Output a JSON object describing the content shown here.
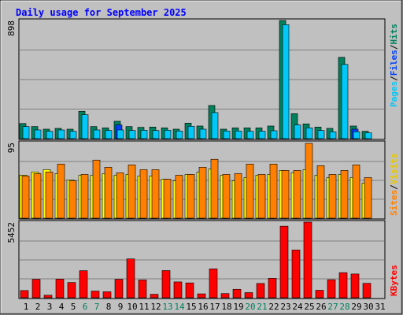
{
  "title": "Daily usage for September 2025",
  "colors": {
    "background": "#c0c0c0",
    "border": "#000000",
    "title": "#0000ff",
    "hits": "#00805c",
    "files": "#0040ff",
    "pages": "#00c8f8",
    "visits": "#ffff00",
    "sites": "#ff8000",
    "kbytes": "#ff0000",
    "weekend_day": "#00805c",
    "weekday": "#000000"
  },
  "chart_data": [
    {
      "type": "bar",
      "panel": "hits-files-pages",
      "y_scale_label": "898",
      "ylim": [
        0,
        898
      ],
      "legend": [
        "Pages",
        "/",
        "Files",
        "/",
        "Hits"
      ],
      "categories": [
        "1",
        "2",
        "3",
        "4",
        "5",
        "6",
        "7",
        "8",
        "9",
        "10",
        "11",
        "12",
        "13",
        "14",
        "15",
        "16",
        "17",
        "18",
        "19",
        "20",
        "21",
        "22",
        "23",
        "24",
        "25",
        "26",
        "27",
        "28",
        "29",
        "30",
        "31"
      ],
      "series": [
        {
          "name": "Hits",
          "values": [
            115,
            92,
            72,
            78,
            72,
            208,
            92,
            82,
            132,
            92,
            86,
            88,
            82,
            72,
            118,
            96,
            252,
            72,
            82,
            82,
            82,
            96,
            898,
            190,
            112,
            88,
            78,
            618,
            96,
            56,
            0
          ]
        },
        {
          "name": "Files",
          "values": [
            0,
            0,
            0,
            0,
            0,
            0,
            0,
            0,
            104,
            0,
            0,
            0,
            0,
            0,
            0,
            0,
            0,
            0,
            0,
            0,
            0,
            0,
            0,
            0,
            0,
            0,
            0,
            0,
            72,
            0,
            0
          ]
        },
        {
          "name": "Pages",
          "values": [
            92,
            66,
            56,
            66,
            56,
            182,
            66,
            62,
            66,
            62,
            64,
            62,
            64,
            58,
            94,
            72,
            198,
            58,
            58,
            56,
            56,
            60,
            866,
            104,
            82,
            62,
            52,
            564,
            52,
            44,
            0
          ]
        }
      ]
    },
    {
      "type": "bar",
      "panel": "visits-sites",
      "y_scale_label": "95",
      "ylim": [
        0,
        95
      ],
      "legend": [
        "Sites",
        "/",
        "Visits"
      ],
      "categories": [
        "1",
        "2",
        "3",
        "4",
        "5",
        "6",
        "7",
        "8",
        "9",
        "10",
        "11",
        "12",
        "13",
        "14",
        "15",
        "16",
        "17",
        "18",
        "19",
        "20",
        "21",
        "22",
        "23",
        "24",
        "25",
        "26",
        "27",
        "28",
        "29",
        "30",
        "31"
      ],
      "series": [
        {
          "name": "Visits",
          "values": [
            54,
            58,
            61,
            56,
            48,
            54,
            54,
            56,
            54,
            55,
            53,
            53,
            49,
            47,
            55,
            58,
            62,
            54,
            47,
            51,
            54,
            55,
            60,
            57,
            61,
            54,
            51,
            55,
            51,
            44,
            0
          ]
        },
        {
          "name": "Sites",
          "values": [
            53,
            56,
            58,
            68,
            47,
            55,
            73,
            64,
            57,
            67,
            61,
            61,
            49,
            54,
            55,
            64,
            74,
            55,
            56,
            68,
            55,
            68,
            60,
            60,
            94,
            66,
            55,
            60,
            67,
            51,
            0
          ]
        }
      ]
    },
    {
      "type": "bar",
      "panel": "kbytes",
      "y_scale_label": "5452",
      "ylim": [
        0,
        5452
      ],
      "legend": [
        "KBytes"
      ],
      "categories": [
        "1",
        "2",
        "3",
        "4",
        "5",
        "6",
        "7",
        "8",
        "9",
        "10",
        "11",
        "12",
        "13",
        "14",
        "15",
        "16",
        "17",
        "18",
        "19",
        "20",
        "21",
        "22",
        "23",
        "24",
        "25",
        "26",
        "27",
        "28",
        "29",
        "30",
        "31"
      ],
      "series": [
        {
          "name": "KBytes",
          "values": [
            520,
            1330,
            180,
            1340,
            1100,
            1950,
            480,
            430,
            1330,
            2800,
            1280,
            250,
            1960,
            1140,
            1070,
            280,
            2080,
            300,
            610,
            370,
            1030,
            1400,
            5160,
            3440,
            5452,
            540,
            1300,
            1810,
            1710,
            1040,
            0
          ]
        }
      ]
    }
  ],
  "x_labels": [
    {
      "label": "1",
      "weekend": false
    },
    {
      "label": "2",
      "weekend": false
    },
    {
      "label": "3",
      "weekend": false
    },
    {
      "label": "4",
      "weekend": false
    },
    {
      "label": "5",
      "weekend": false
    },
    {
      "label": "6",
      "weekend": true
    },
    {
      "label": "7",
      "weekend": true
    },
    {
      "label": "8",
      "weekend": false
    },
    {
      "label": "9",
      "weekend": false
    },
    {
      "label": "10",
      "weekend": false
    },
    {
      "label": "11",
      "weekend": false
    },
    {
      "label": "12",
      "weekend": false
    },
    {
      "label": "13",
      "weekend": true
    },
    {
      "label": "14",
      "weekend": true
    },
    {
      "label": "15",
      "weekend": false
    },
    {
      "label": "16",
      "weekend": false
    },
    {
      "label": "17",
      "weekend": false
    },
    {
      "label": "18",
      "weekend": false
    },
    {
      "label": "19",
      "weekend": false
    },
    {
      "label": "20",
      "weekend": true
    },
    {
      "label": "21",
      "weekend": true
    },
    {
      "label": "22",
      "weekend": false
    },
    {
      "label": "23",
      "weekend": false
    },
    {
      "label": "24",
      "weekend": false
    },
    {
      "label": "25",
      "weekend": false
    },
    {
      "label": "26",
      "weekend": false
    },
    {
      "label": "27",
      "weekend": true
    },
    {
      "label": "28",
      "weekend": true
    },
    {
      "label": "29",
      "weekend": false
    },
    {
      "label": "30",
      "weekend": false
    },
    {
      "label": "31",
      "weekend": false
    }
  ]
}
